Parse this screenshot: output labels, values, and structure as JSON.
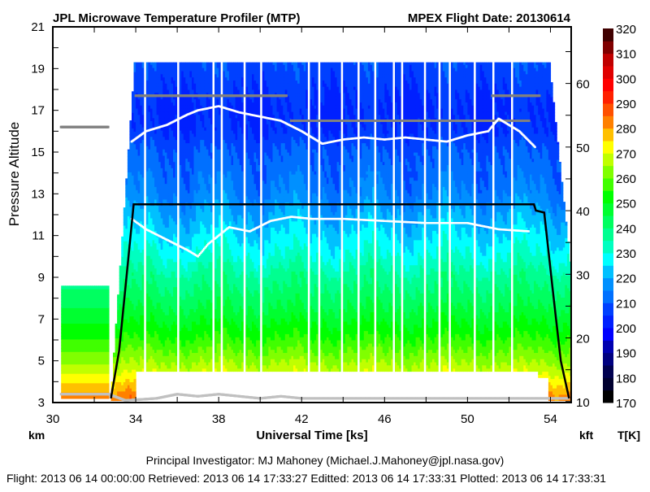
{
  "chart_data": {
    "type": "heatmap",
    "title": "JPL Microwave Temperature Profiler (MTP)",
    "subtitle": "MPEX  Flight Date: 20130614",
    "xlabel": "Universal Time [ks]",
    "ylabel": "Pressure Altitude",
    "y_unit_left": "km",
    "y_unit_right": "kft",
    "colorbar_label": "T[K]",
    "xlim": [
      30,
      55
    ],
    "ylim": [
      3,
      21
    ],
    "y2lim_kft": [
      9.84,
      68.9
    ],
    "x_ticks": [
      30,
      34,
      38,
      42,
      46,
      50,
      54
    ],
    "y_ticks": [
      3,
      5,
      7,
      9,
      11,
      13,
      15,
      17,
      19,
      21
    ],
    "y2_ticks": [
      10,
      20,
      30,
      40,
      50,
      60
    ],
    "colorbar": {
      "range": [
        170,
        320
      ],
      "step": 5,
      "ticks": [
        170,
        180,
        190,
        200,
        210,
        220,
        230,
        240,
        250,
        260,
        270,
        280,
        290,
        300,
        310,
        320
      ],
      "colors": [
        "#000000",
        "#000030",
        "#000050",
        "#000080",
        "#0000b0",
        "#0000ff",
        "#0020ff",
        "#0040ff",
        "#0070ff",
        "#0090ff",
        "#00c0ff",
        "#00ffff",
        "#00ffc0",
        "#00ff90",
        "#00ff60",
        "#00ff30",
        "#00ff00",
        "#40ff00",
        "#80ff00",
        "#c0ff00",
        "#ffff00",
        "#ffc000",
        "#ff8000",
        "#ff5000",
        "#ff2000",
        "#ff0000",
        "#e00000",
        "#c00000",
        "#800000",
        "#400000"
      ]
    },
    "temperature_profile": {
      "altitude_km": [
        3.2,
        4.5,
        6,
        7.5,
        9,
        10,
        11,
        12,
        13,
        14,
        15,
        16,
        17,
        18,
        19.3
      ],
      "temperature_K": [
        283,
        268,
        255,
        245,
        237,
        230,
        225,
        220,
        215,
        212,
        210,
        205,
        204,
        206,
        209
      ]
    },
    "ground_segment": {
      "time_ks": [
        30.4,
        32.7
      ],
      "altitude_km": [
        3.2,
        8.6
      ]
    },
    "cruise_curtain": {
      "time_ks": [
        33.5,
        53.9
      ],
      "altitude_km": [
        4.5,
        19.3
      ]
    },
    "data_gaps_ks": [
      34.4,
      36.0,
      37.7,
      38.1,
      39.2,
      40.0,
      42.3,
      42.8,
      43.9,
      44.7,
      45.5,
      46.4,
      46.8,
      47.9,
      48.6,
      49.1,
      50.3,
      51.2,
      52.1
    ],
    "flight_altitude": {
      "name": "aircraft",
      "time_ks": [
        32.8,
        33.2,
        33.6,
        33.9,
        53.2,
        53.3,
        53.7,
        54.1,
        54.5,
        54.9
      ],
      "altitude_km": [
        3.2,
        5.5,
        9.5,
        12.5,
        12.5,
        12.2,
        12.1,
        8.5,
        5.0,
        3.2
      ]
    },
    "tropopause_gray": [
      {
        "time_ks": [
          30.4,
          32.7
        ],
        "altitude_km": [
          16.2,
          16.2
        ]
      },
      {
        "time_ks": [
          34.0,
          41.3
        ],
        "altitude_km": [
          17.7,
          17.7
        ]
      },
      {
        "time_ks": [
          41.5,
          53.0
        ],
        "altitude_km": [
          16.5,
          16.5
        ]
      },
      {
        "time_ks": [
          51.2,
          53.5
        ],
        "altitude_km": [
          17.7,
          17.7
        ]
      }
    ],
    "tropopause_white": {
      "time_ks": [
        33.8,
        34.5,
        35.5,
        36.5,
        37.0,
        38.0,
        39.0,
        40.0,
        41.0,
        42.0,
        43.0,
        44.0,
        45.0,
        46.0,
        47.0,
        48.0,
        49.0,
        50.0,
        51.0,
        51.5,
        52.5,
        53.3
      ],
      "altitude_km": [
        15.5,
        16.0,
        16.3,
        16.8,
        17.0,
        17.2,
        16.9,
        16.7,
        16.5,
        16.0,
        15.4,
        15.6,
        15.7,
        15.6,
        15.7,
        15.6,
        15.5,
        15.8,
        16.0,
        16.6,
        16.0,
        15.2
      ]
    },
    "lower_white": {
      "time_ks": [
        33.8,
        34.5,
        35.5,
        36.5,
        37.0,
        37.5,
        38.5,
        39.5,
        40.5,
        41.5,
        42.5,
        44.0,
        46.0,
        48.0,
        50.0,
        51.5,
        53.0
      ],
      "altitude_km": [
        11.8,
        11.3,
        10.8,
        10.3,
        10.0,
        10.6,
        11.4,
        11.2,
        11.7,
        11.9,
        11.8,
        11.8,
        11.7,
        11.6,
        11.6,
        11.3,
        11.2
      ]
    },
    "surface_gray": {
      "time_ks": [
        30.4,
        32.7,
        33.5,
        35,
        36,
        37,
        38,
        39,
        40,
        41,
        42,
        44,
        46,
        48,
        50,
        52,
        54,
        54.9
      ],
      "altitude_km": [
        3.4,
        3.4,
        3.1,
        3.2,
        3.4,
        3.3,
        3.4,
        3.3,
        3.2,
        3.3,
        3.2,
        3.2,
        3.2,
        3.2,
        3.2,
        3.2,
        3.2,
        3.2
      ]
    }
  },
  "footer": {
    "pi": "Principal Investigator: MJ Mahoney (Michael.J.Mahoney@jpl.nasa.gov)",
    "dates": "Flight: 2013 06 14 00:00:00   Retrieved: 2013 06 14 17:33:27   Editted: 2013 06 14 17:33:31   Plotted: 2013 06 14 17:33:31"
  }
}
